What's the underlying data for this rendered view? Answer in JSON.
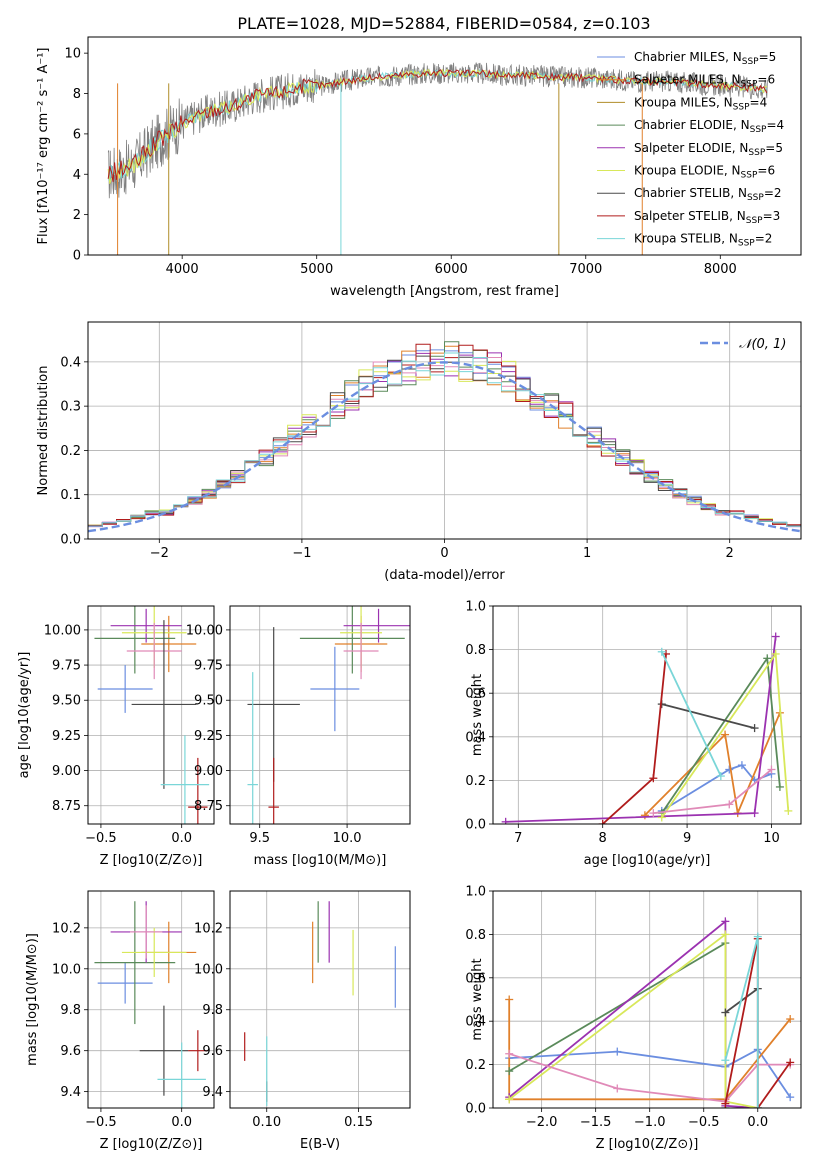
{
  "title": "PLATE=1028, MJD=52884, FIBERID=0584, z=0.103",
  "colors": {
    "chabrier_miles": "#6b8ee0",
    "salpeter_miles": "#e0802b",
    "kroupa_miles": "#b08d2a",
    "chabrier_elodie": "#5a8a5a",
    "salpeter_elodie": "#9b32b0",
    "kroupa_elodie": "#d8e85a",
    "chabrier_stelib": "#4a4a4a",
    "salpeter_stelib": "#b01c1c",
    "kroupa_stelib": "#7ad6d8",
    "pink": "#e08ab8",
    "data": "#808080",
    "grid": "#b0b0b0"
  },
  "chart_data": [
    {
      "type": "line",
      "title": "PLATE=1028, MJD=52884, FIBERID=0584, z=0.103",
      "xlabel": "wavelength [Angstrom, rest frame]",
      "ylabel": "Flux [fλ10⁻¹⁷ erg cm⁻² s⁻¹ A⁻¹]",
      "xlim": [
        3300,
        8600
      ],
      "ylim": [
        0,
        10.8
      ],
      "xticks": [
        4000,
        5000,
        6000,
        7000,
        8000
      ],
      "yticks": [
        0,
        2,
        4,
        6,
        8,
        10
      ],
      "continuum": {
        "x": [
          3450,
          3550,
          3650,
          3750,
          3850,
          3950,
          4050,
          4150,
          4250,
          4350,
          4450,
          4550,
          4650,
          4750,
          4850,
          4950,
          5050,
          5200,
          5400,
          5600,
          5800,
          6000,
          6200,
          6400,
          6600,
          6800,
          7000,
          7200,
          7400,
          7600,
          7800,
          8000,
          8200,
          8350
        ],
        "y": [
          4.0,
          4.2,
          4.5,
          5.2,
          5.8,
          6.3,
          6.7,
          7.0,
          7.2,
          7.3,
          7.6,
          7.9,
          8.0,
          8.1,
          8.3,
          8.4,
          8.4,
          8.6,
          8.8,
          8.9,
          9.0,
          9.0,
          9.0,
          8.9,
          8.9,
          8.8,
          8.8,
          8.7,
          8.6,
          8.6,
          8.5,
          8.4,
          8.3,
          8.2
        ]
      },
      "legend": [
        "Chabrier MILES, NSSP=5",
        "Salpeter MILES, NSSP=6",
        "Kroupa MILES, NSSP=4",
        "Chabrier ELODIE, NSSP=4",
        "Salpeter ELODIE, NSSP=5",
        "Kroupa ELODIE, NSSP=6",
        "Chabrier STELIB, NSSP=2",
        "Salpeter STELIB, NSSP=3",
        "Kroupa STELIB, NSSP=2"
      ],
      "legend_position": "right"
    },
    {
      "type": "line",
      "xlabel": "(data-model)/error",
      "ylabel": "Normed distribution",
      "xlim": [
        -2.5,
        2.5
      ],
      "ylim": [
        0,
        0.49
      ],
      "xticks": [
        -2,
        -1,
        0,
        1,
        2
      ],
      "yticks": [
        0.0,
        0.1,
        0.2,
        0.3,
        0.4
      ],
      "gaussian_label": "𝒩(0, 1)",
      "legend_position": "top-right",
      "grid": true
    },
    {
      "type": "scatter",
      "xlabel": "Z [log10(Z/Z⊙)]",
      "ylabel": "age  [log10(age/yr)]",
      "xlim": [
        -0.58,
        0.2
      ],
      "ylim": [
        8.62,
        10.17
      ],
      "xticks": [
        -0.5,
        0.0
      ],
      "yticks": [
        8.75,
        9.0,
        9.25,
        9.5,
        9.75,
        10.0
      ],
      "points": [
        {
          "x": -0.35,
          "y": 9.58,
          "xerr": 0.17,
          "yerr": 0.17,
          "c": "chabrier_miles"
        },
        {
          "x": -0.08,
          "y": 9.9,
          "xerr": 0.17,
          "yerr": 0.2,
          "c": "salpeter_miles"
        },
        {
          "x": -0.29,
          "y": 9.94,
          "xerr": 0.25,
          "yerr": 0.25,
          "c": "chabrier_elodie"
        },
        {
          "x": -0.22,
          "y": 10.03,
          "xerr": 0.22,
          "yerr": 0.12,
          "c": "salpeter_elodie"
        },
        {
          "x": -0.17,
          "y": 9.98,
          "xerr": 0.2,
          "yerr": 0.25,
          "c": "kroupa_elodie"
        },
        {
          "x": -0.17,
          "y": 9.85,
          "xerr": 0.17,
          "yerr": 0.2,
          "c": "pink"
        },
        {
          "x": -0.11,
          "y": 9.47,
          "xerr": 0.2,
          "yerr": 0.6,
          "c": "chabrier_stelib"
        },
        {
          "x": 0.1,
          "y": 8.74,
          "xerr": 0.06,
          "yerr": 0.35,
          "c": "salpeter_stelib"
        },
        {
          "x": 0.02,
          "y": 8.9,
          "xerr": 0.15,
          "yerr": 0.35,
          "c": "kroupa_stelib"
        }
      ]
    },
    {
      "type": "scatter",
      "xlabel": "mass [log10(M/M⊙)]",
      "xlim": [
        9.33,
        10.36
      ],
      "ylim": [
        8.62,
        10.17
      ],
      "xticks": [
        9.5,
        10.0
      ],
      "yticks": [
        8.75,
        9.0,
        9.25,
        9.5,
        9.75,
        10.0
      ],
      "points": [
        {
          "x": 9.93,
          "y": 9.58,
          "xerr": 0.14,
          "yerr": 0.3,
          "c": "chabrier_miles"
        },
        {
          "x": 10.08,
          "y": 9.9,
          "xerr": 0.15,
          "yerr": 0.2,
          "c": "salpeter_miles"
        },
        {
          "x": 10.03,
          "y": 9.94,
          "xerr": 0.3,
          "yerr": 0.25,
          "c": "chabrier_elodie"
        },
        {
          "x": 10.18,
          "y": 10.03,
          "xerr": 0.2,
          "yerr": 0.12,
          "c": "salpeter_elodie"
        },
        {
          "x": 10.08,
          "y": 9.98,
          "xerr": 0.12,
          "yerr": 0.25,
          "c": "kroupa_elodie"
        },
        {
          "x": 10.08,
          "y": 9.85,
          "xerr": 0.1,
          "yerr": 0.2,
          "c": "pink"
        },
        {
          "x": 9.58,
          "y": 9.47,
          "xerr": 0.15,
          "yerr": 0.55,
          "c": "chabrier_stelib"
        },
        {
          "x": 9.58,
          "y": 8.74,
          "xerr": 0.03,
          "yerr": 0.35,
          "c": "salpeter_stelib"
        },
        {
          "x": 9.46,
          "y": 8.9,
          "xerr": 0.03,
          "yerr": 0.8,
          "c": "kroupa_stelib"
        }
      ]
    },
    {
      "type": "line",
      "xlabel": "age  [log10(age/yr)]",
      "ylabel": "mass weight",
      "xlim": [
        6.7,
        10.35
      ],
      "ylim": [
        0,
        1
      ],
      "xticks": [
        7,
        8,
        9,
        10
      ],
      "yticks": [
        0.0,
        0.2,
        0.4,
        0.6,
        0.8,
        1.0
      ],
      "series": [
        {
          "c": "chabrier_miles",
          "x": [
            8.7,
            9.5,
            9.65,
            9.8,
            10.0
          ],
          "y": [
            0.06,
            0.25,
            0.27,
            0.2,
            0.23
          ]
        },
        {
          "c": "salpeter_miles",
          "x": [
            8.5,
            9.45,
            9.6,
            10.1
          ],
          "y": [
            0.04,
            0.41,
            0.05,
            0.51
          ]
        },
        {
          "c": "chabrier_elodie",
          "x": [
            8.7,
            9.95,
            10.1
          ],
          "y": [
            0.05,
            0.76,
            0.17
          ]
        },
        {
          "c": "salpeter_elodie",
          "x": [
            6.85,
            9.8,
            10.05
          ],
          "y": [
            0.01,
            0.05,
            0.86
          ]
        },
        {
          "c": "kroupa_elodie",
          "x": [
            8.7,
            10.05,
            10.2
          ],
          "y": [
            0.03,
            0.78,
            0.06
          ]
        },
        {
          "c": "pink",
          "x": [
            8.6,
            9.5,
            10.0
          ],
          "y": [
            0.05,
            0.09,
            0.25
          ]
        },
        {
          "c": "chabrier_stelib",
          "x": [
            8.7,
            9.8
          ],
          "y": [
            0.55,
            0.44
          ]
        },
        {
          "c": "salpeter_stelib",
          "x": [
            8.0,
            8.6,
            8.75
          ],
          "y": [
            0.0,
            0.21,
            0.78
          ]
        },
        {
          "c": "kroupa_stelib",
          "x": [
            8.7,
            9.4
          ],
          "y": [
            0.79,
            0.22
          ]
        }
      ]
    },
    {
      "type": "scatter",
      "xlabel": "Z [log10(Z/Z⊙)]",
      "ylabel": "mass [log10(M/M⊙)]",
      "xlim": [
        -0.58,
        0.2
      ],
      "ylim": [
        9.32,
        10.38
      ],
      "xticks": [
        -0.5,
        0.0
      ],
      "yticks": [
        9.4,
        9.6,
        9.8,
        10.0,
        10.2
      ],
      "points": [
        {
          "x": -0.35,
          "y": 9.93,
          "xerr": 0.17,
          "yerr": 0.1,
          "c": "chabrier_miles"
        },
        {
          "x": -0.08,
          "y": 10.08,
          "xerr": 0.17,
          "yerr": 0.15,
          "c": "salpeter_miles"
        },
        {
          "x": -0.29,
          "y": 10.03,
          "xerr": 0.25,
          "yerr": 0.3,
          "c": "chabrier_elodie"
        },
        {
          "x": -0.22,
          "y": 10.18,
          "xerr": 0.22,
          "yerr": 0.15,
          "c": "salpeter_elodie"
        },
        {
          "x": -0.17,
          "y": 10.08,
          "xerr": 0.2,
          "yerr": 0.12,
          "c": "kroupa_elodie"
        },
        {
          "x": -0.22,
          "y": 10.18,
          "xerr": 0.1,
          "yerr": 0.13,
          "c": "pink"
        },
        {
          "x": -0.11,
          "y": 9.6,
          "xerr": 0.15,
          "yerr": 0.22,
          "c": "chabrier_stelib"
        },
        {
          "x": 0.1,
          "y": 9.6,
          "xerr": 0.06,
          "yerr": 0.1,
          "c": "salpeter_stelib"
        },
        {
          "x": 0.0,
          "y": 9.46,
          "xerr": 0.15,
          "yerr": 0.18,
          "c": "kroupa_stelib"
        }
      ]
    },
    {
      "type": "scatter",
      "xlabel": "E(B-V)",
      "xlim": [
        0.08,
        0.178
      ],
      "ylim": [
        9.32,
        10.38
      ],
      "xticks": [
        0.1,
        0.15
      ],
      "yticks": [
        9.4,
        9.6,
        9.8,
        10.0,
        10.2
      ],
      "points": [
        {
          "x": 0.17,
          "y": 9.96,
          "yerr": 0.15,
          "c": "chabrier_miles"
        },
        {
          "x": 0.125,
          "y": 10.08,
          "yerr": 0.15,
          "c": "salpeter_miles"
        },
        {
          "x": 0.128,
          "y": 10.18,
          "yerr": 0.15,
          "c": "chabrier_elodie"
        },
        {
          "x": 0.134,
          "y": 10.18,
          "yerr": 0.15,
          "c": "salpeter_elodie"
        },
        {
          "x": 0.147,
          "y": 10.03,
          "yerr": 0.16,
          "c": "kroupa_elodie"
        },
        {
          "x": 0.1,
          "y": 9.4,
          "yerr": 0.05,
          "c": "chabrier_stelib"
        },
        {
          "x": 0.088,
          "y": 9.62,
          "yerr": 0.07,
          "c": "salpeter_stelib"
        },
        {
          "x": 0.1,
          "y": 9.5,
          "yerr": 0.17,
          "c": "kroupa_stelib"
        }
      ]
    },
    {
      "type": "line",
      "xlabel": "Z [log10(Z/Z⊙)]",
      "ylabel": "mass weight",
      "xlim": [
        -2.45,
        0.4
      ],
      "ylim": [
        0,
        1
      ],
      "xticks": [
        -2.0,
        -1.5,
        -1.0,
        -0.5,
        0.0
      ],
      "yticks": [
        0.0,
        0.2,
        0.4,
        0.6,
        0.8,
        1.0
      ],
      "series": [
        {
          "c": "chabrier_miles",
          "x": [
            -2.3,
            -1.3,
            -0.3,
            0.0,
            0.3
          ],
          "y": [
            0.23,
            0.26,
            0.19,
            0.27,
            0.05
          ]
        },
        {
          "c": "salpeter_miles",
          "x": [
            -2.3,
            -2.3,
            -0.3,
            0.3
          ],
          "y": [
            0.5,
            0.04,
            0.04,
            0.41
          ]
        },
        {
          "c": "chabrier_elodie",
          "x": [
            -2.3,
            -0.3,
            -0.3
          ],
          "y": [
            0.17,
            0.76,
            0.0
          ]
        },
        {
          "c": "salpeter_elodie",
          "x": [
            -2.3,
            -0.3,
            -0.3,
            0.0
          ],
          "y": [
            0.05,
            0.86,
            0.01,
            0.0
          ]
        },
        {
          "c": "kroupa_elodie",
          "x": [
            -2.3,
            -0.3,
            -0.3,
            0.0
          ],
          "y": [
            0.04,
            0.8,
            0.03,
            0.0
          ]
        },
        {
          "c": "pink",
          "x": [
            -2.3,
            -1.3,
            -0.3,
            0.0,
            0.3
          ],
          "y": [
            0.25,
            0.09,
            0.03,
            0.2,
            0.2
          ]
        },
        {
          "c": "chabrier_stelib",
          "x": [
            -0.3,
            0.0
          ],
          "y": [
            0.44,
            0.55
          ]
        },
        {
          "c": "salpeter_stelib",
          "x": [
            -0.3,
            0.0,
            0.0,
            0.3
          ],
          "y": [
            0.02,
            0.78,
            0.0,
            0.21
          ]
        },
        {
          "c": "kroupa_stelib",
          "x": [
            -0.3,
            0.0,
            0.0
          ],
          "y": [
            0.22,
            0.79,
            0.0
          ]
        }
      ]
    }
  ]
}
